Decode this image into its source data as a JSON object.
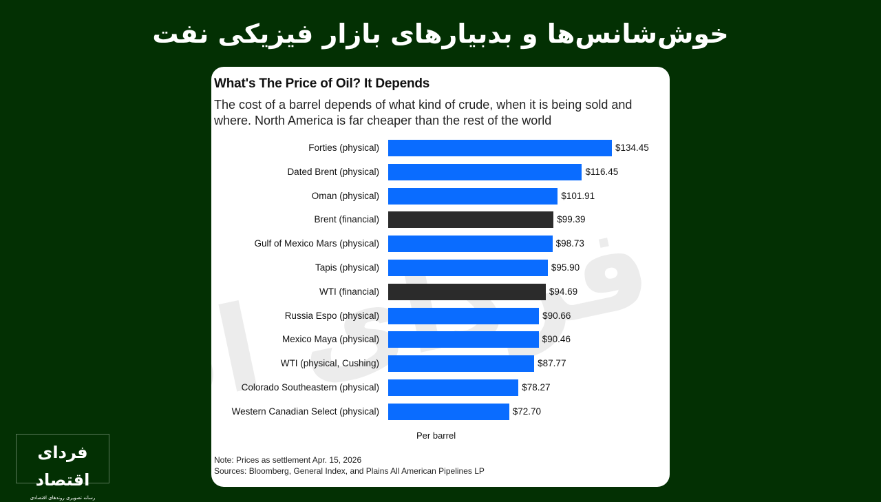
{
  "header": {
    "title": "خوش‌شانس‌ها و بدبیارهای بازار فیزیکی نفت"
  },
  "brand": {
    "logo_name": "فردای اقتصاد",
    "logo_tagline": "رسانه تصویری روندهای اقتصادی",
    "watermark": "فردای اقتصاد"
  },
  "colors": {
    "background": "#033003",
    "physical": "#0a6cff",
    "financial": "#2b2b2b"
  },
  "chart_data": {
    "type": "bar",
    "orientation": "horizontal",
    "title": "What's The Price of Oil? It Depends",
    "subtitle": "The cost of a barrel depends of what kind of crude, when it is being sold and where. North America is far cheaper than the rest of the world",
    "xlabel": "Per barrel",
    "ylabel": "",
    "grid": false,
    "legend": null,
    "categories": [
      "Forties (physical)",
      "Dated Brent (physical)",
      "Oman (physical)",
      "Brent (financial)",
      "Gulf of Mexico Mars (physical)",
      "Tapis (physical)",
      "WTI (financial)",
      "Russia Espo (physical)",
      "Mexico Maya (physical)",
      "WTI (physical, Cushing)",
      "Colorado Southeastern (physical)",
      "Western Canadian Select (physical)"
    ],
    "values": [
      134.45,
      116.45,
      101.91,
      99.39,
      98.73,
      95.9,
      94.69,
      90.66,
      90.46,
      87.77,
      78.27,
      72.7
    ],
    "labels": [
      "$134.45",
      "$116.45",
      "$101.91",
      "$99.39",
      "$98.73",
      "$95.90",
      "$94.69",
      "$90.66",
      "$90.46",
      "$87.77",
      "$78.27",
      "$72.70"
    ],
    "kind": [
      "physical",
      "physical",
      "physical",
      "financial",
      "physical",
      "physical",
      "financial",
      "physical",
      "physical",
      "physical",
      "physical",
      "physical"
    ],
    "xlim": [
      0,
      140
    ],
    "note": "Note: Prices as settlement Apr. 15, 2026",
    "sources": "Sources: Bloomberg, General Index, and Plains All American Pipelines LP"
  }
}
